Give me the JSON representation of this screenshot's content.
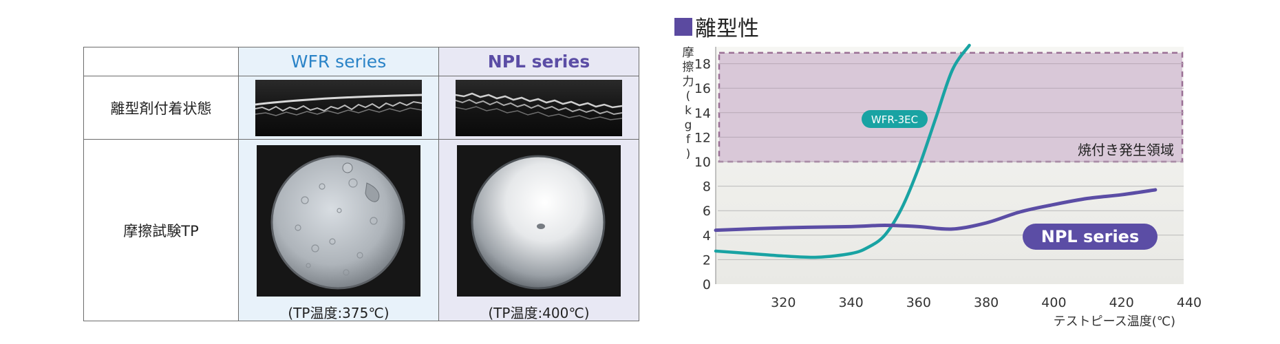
{
  "table": {
    "headers": {
      "wfr": "WFR series",
      "npl": "NPL series"
    },
    "rows": {
      "strip": "離型剤付着状態",
      "tp": "摩擦試験TP"
    },
    "captions": {
      "wfr": "(TP温度:375℃)",
      "npl": "(TP温度:400℃)"
    }
  },
  "chart_data": {
    "type": "line",
    "title": "■離型性",
    "title_text": "離型性",
    "ylabel": "摩擦力(kgf)",
    "xlabel": "テストピース温度(℃)",
    "xlim": [
      300,
      440
    ],
    "ylim": [
      0,
      19
    ],
    "x_ticks": [
      320,
      340,
      360,
      380,
      400,
      420,
      440
    ],
    "y_ticks": [
      0,
      2,
      4,
      6,
      8,
      10,
      12,
      14,
      16,
      18
    ],
    "grid": true,
    "region": {
      "label": "焼付き発生領域",
      "y_from": 10,
      "y_to": 19,
      "color": "#d9c8d8"
    },
    "series": [
      {
        "name": "WFR-3EC",
        "color": "#19a3a3",
        "x": [
          300,
          310,
          320,
          330,
          340,
          345,
          350,
          355,
          360,
          365,
          370,
          375
        ],
        "y": [
          2.7,
          2.5,
          2.3,
          2.2,
          2.5,
          3.0,
          4.0,
          6.2,
          9.5,
          13.5,
          17.5,
          19.5
        ]
      },
      {
        "name": "NPL series",
        "color": "#5b4da5",
        "x": [
          300,
          320,
          340,
          350,
          360,
          370,
          380,
          390,
          400,
          410,
          420,
          430
        ],
        "y": [
          4.4,
          4.6,
          4.7,
          4.8,
          4.7,
          4.5,
          5.0,
          5.9,
          6.5,
          7.0,
          7.3,
          7.7
        ]
      }
    ]
  }
}
